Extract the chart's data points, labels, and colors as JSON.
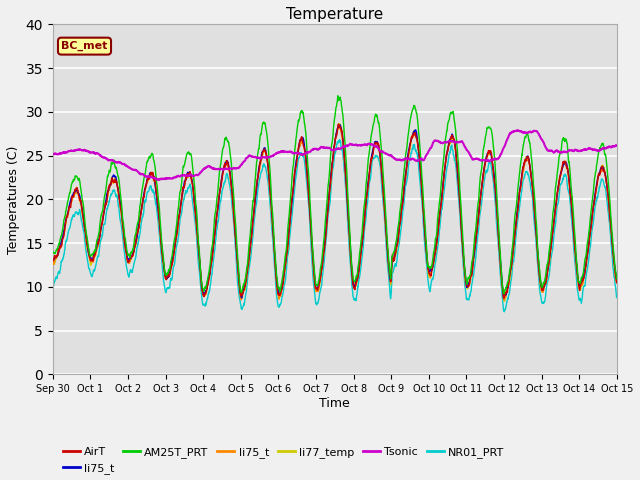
{
  "title": "Temperature",
  "xlabel": "Time",
  "ylabel": "Temperatures (C)",
  "ylim": [
    0,
    40
  ],
  "yticks": [
    0,
    5,
    10,
    15,
    20,
    25,
    30,
    35,
    40
  ],
  "plot_bg_color": "#e0e0e0",
  "fig_bg_color": "#f0f0f0",
  "legend_entries": [
    "AirT",
    "li75_t",
    "AM25T_PRT",
    "li75_t",
    "li77_temp",
    "Tsonic",
    "NR01_PRT"
  ],
  "legend_colors": [
    "#cc0000",
    "#0000cc",
    "#00cc00",
    "#ff8800",
    "#cccc00",
    "#cc00cc",
    "#00cccc"
  ],
  "annotation_text": "BC_met",
  "annotation_color": "#880000",
  "annotation_bg": "#ffff99",
  "xtick_labels": [
    "Sep 30",
    "Oct 1",
    "Oct 2",
    "Oct 3",
    "Oct 4",
    "Oct 5",
    "Oct 6",
    "Oct 7",
    "Oct 8",
    "Oct 9",
    "Oct 10",
    "Oct 11",
    "Oct 12",
    "Oct 13",
    "Oct 14",
    "Oct 15"
  ],
  "days": 15
}
